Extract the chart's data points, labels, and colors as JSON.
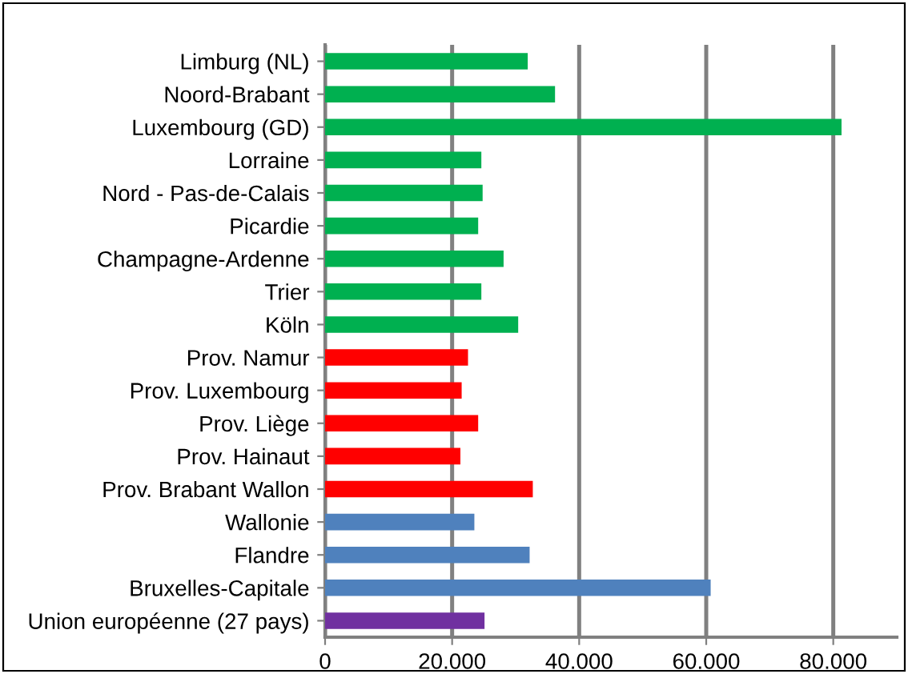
{
  "chart_data": {
    "type": "bar",
    "orientation": "horizontal",
    "categories": [
      "Limburg (NL)",
      "Noord-Brabant",
      "Luxembourg (GD)",
      "Lorraine",
      "Nord - Pas-de-Calais",
      "Picardie",
      "Champagne-Ardenne",
      "Trier",
      "Köln",
      "Prov. Namur",
      "Prov. Luxembourg",
      "Prov. Liège",
      "Prov. Hainaut",
      "Prov. Brabant Wallon",
      "Wallonie",
      "Flandre",
      "Bruxelles-Capitale",
      "Union européenne (27 pays)"
    ],
    "values": [
      31900,
      36200,
      81300,
      24600,
      24800,
      24100,
      28100,
      24600,
      30400,
      22500,
      21500,
      24100,
      21300,
      32700,
      23500,
      32200,
      60700,
      25100
    ],
    "colors": [
      "#00b050",
      "#00b050",
      "#00b050",
      "#00b050",
      "#00b050",
      "#00b050",
      "#00b050",
      "#00b050",
      "#00b050",
      "#ff0000",
      "#ff0000",
      "#ff0000",
      "#ff0000",
      "#ff0000",
      "#4f81bd",
      "#4f81bd",
      "#4f81bd",
      "#7030a0"
    ],
    "xlim": [
      0,
      90000
    ],
    "xticks": [
      {
        "value": 0,
        "label": "0"
      },
      {
        "value": 20000,
        "label": "20.000"
      },
      {
        "value": 40000,
        "label": "40.000"
      },
      {
        "value": 60000,
        "label": "60.000"
      },
      {
        "value": 80000,
        "label": "80.000"
      }
    ],
    "grid": "x"
  }
}
